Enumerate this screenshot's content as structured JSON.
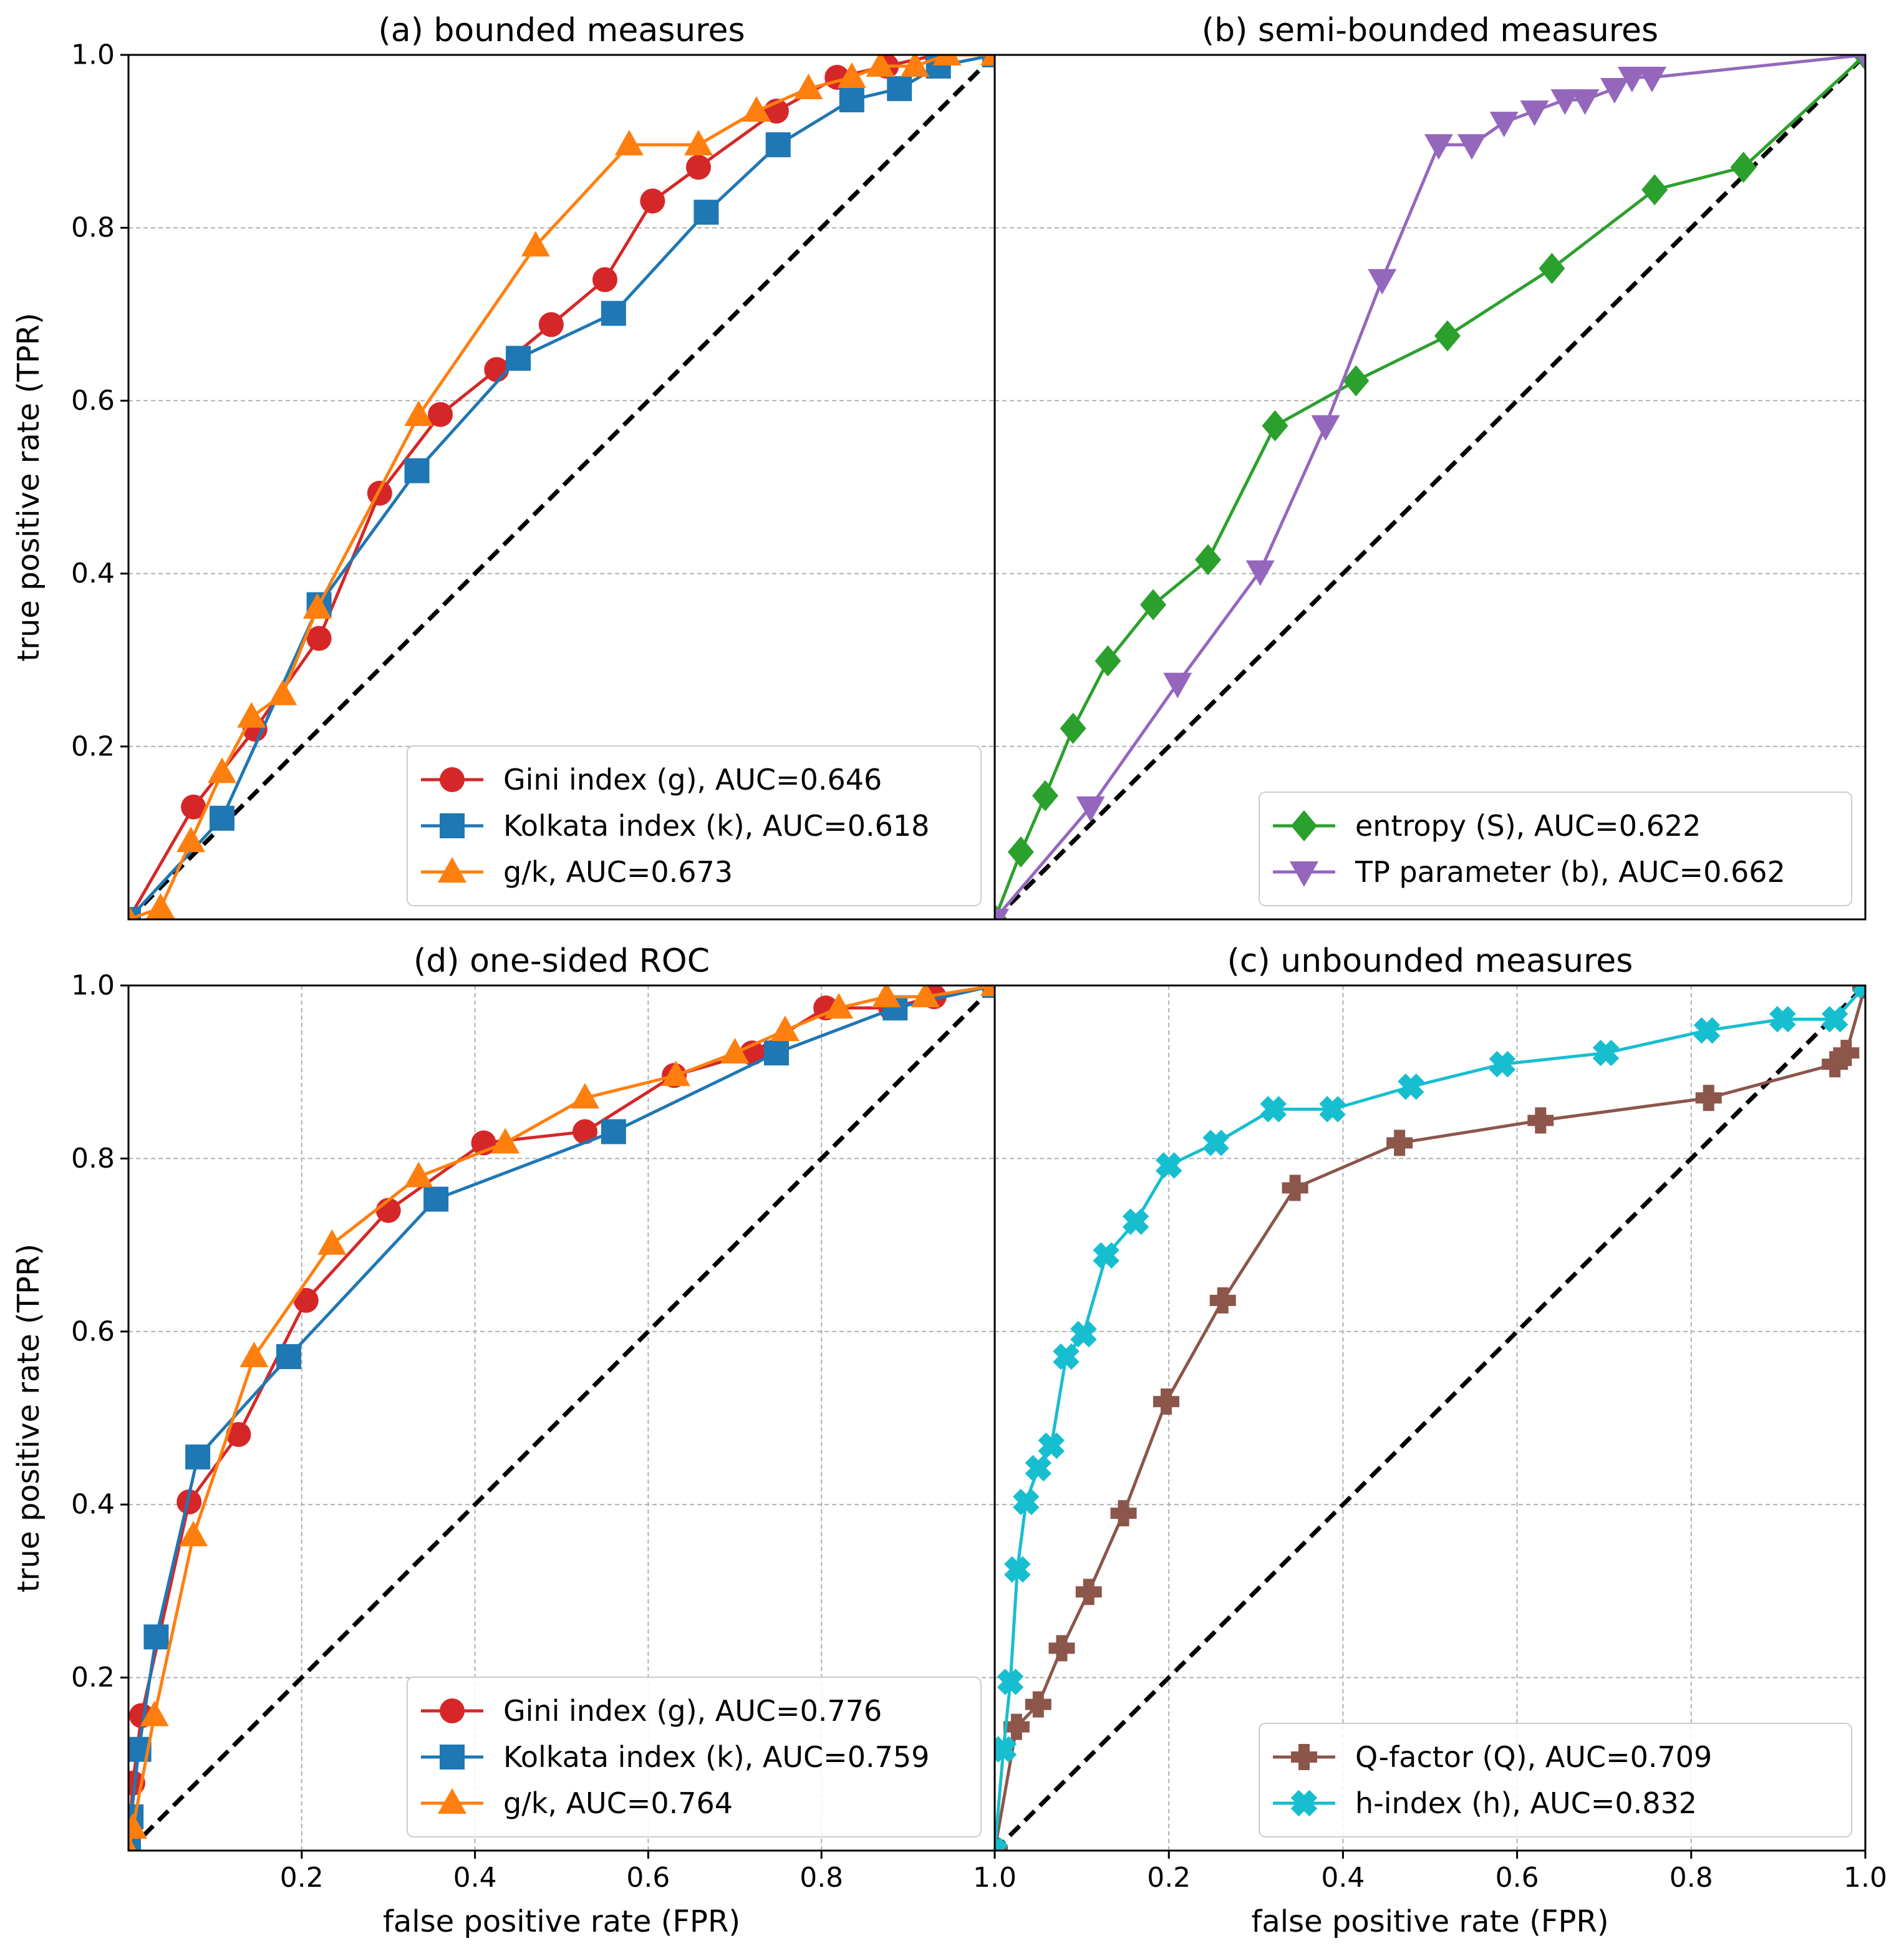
{
  "chart_data": [
    {
      "type": "line",
      "title": "(a) bounded measures",
      "xlabel": "",
      "ylabel": "true positive rate (TPR)",
      "xlim": [
        0,
        1
      ],
      "ylim": [
        0,
        1
      ],
      "x_ticks": [],
      "y_ticks": [
        "0.2",
        "0.4",
        "0.6",
        "0.8",
        "1.0"
      ],
      "grid": "horizontal",
      "legend_position": "lower-right",
      "diagonal": true,
      "series": [
        {
          "name": "Gini index (g), AUC=0.646",
          "color": "#d62728",
          "marker": "circle",
          "x": [
            0,
            0.075,
            0.146,
            0.22,
            0.29,
            0.36,
            0.425,
            0.488,
            0.55,
            0.605,
            0.658,
            0.748,
            0.818,
            0.875,
            0.933,
            1.0
          ],
          "y": [
            0,
            0.13,
            0.22,
            0.325,
            0.493,
            0.584,
            0.636,
            0.688,
            0.74,
            0.831,
            0.87,
            0.935,
            0.974,
            0.987,
            1.0,
            1.0
          ]
        },
        {
          "name": "Kolkata index (k), AUC=0.618",
          "color": "#1f77b4",
          "marker": "square",
          "x": [
            0,
            0.108,
            0.22,
            0.333,
            0.45,
            0.56,
            0.667,
            0.75,
            0.835,
            0.89,
            0.935,
            1.0
          ],
          "y": [
            0,
            0.117,
            0.364,
            0.519,
            0.649,
            0.701,
            0.818,
            0.896,
            0.948,
            0.961,
            0.987,
            1.0
          ]
        },
        {
          "name": "g/k, AUC=0.673",
          "color": "#ff7f0e",
          "marker": "triangle-up",
          "x": [
            0,
            0.037,
            0.072,
            0.108,
            0.142,
            0.178,
            0.218,
            0.335,
            0.47,
            0.578,
            0.658,
            0.725,
            0.785,
            0.835,
            0.868,
            0.908,
            0.945,
            1.0
          ],
          "y": [
            0,
            0.013,
            0.09,
            0.17,
            0.234,
            0.26,
            0.36,
            0.583,
            0.779,
            0.896,
            0.896,
            0.935,
            0.961,
            0.974,
            0.987,
            0.987,
            1.0,
            1.0
          ]
        }
      ]
    },
    {
      "type": "line",
      "title": "(b) semi-bounded measures",
      "xlabel": "",
      "ylabel": "",
      "xlim": [
        0,
        1
      ],
      "ylim": [
        0,
        1
      ],
      "x_ticks": [],
      "y_ticks": [],
      "grid": "horizontal",
      "legend_position": "lower-right",
      "diagonal": true,
      "series": [
        {
          "name": "entropy (S), AUC=0.622",
          "color": "#2ca02c",
          "marker": "diamond",
          "x": [
            0,
            0.03,
            0.058,
            0.09,
            0.13,
            0.182,
            0.245,
            0.322,
            0.415,
            0.52,
            0.64,
            0.758,
            0.86,
            1.0
          ],
          "y": [
            0,
            0.078,
            0.143,
            0.221,
            0.299,
            0.364,
            0.416,
            0.571,
            0.623,
            0.675,
            0.753,
            0.844,
            0.87,
            1.0
          ]
        },
        {
          "name": "TP parameter (b), AUC=0.662",
          "color": "#9467bd",
          "marker": "triangle-down",
          "x": [
            0,
            0.11,
            0.21,
            0.305,
            0.38,
            0.445,
            0.51,
            0.548,
            0.585,
            0.62,
            0.655,
            0.678,
            0.712,
            0.732,
            0.755,
            1.0
          ],
          "y": [
            0,
            0.13,
            0.273,
            0.403,
            0.571,
            0.74,
            0.896,
            0.896,
            0.922,
            0.935,
            0.948,
            0.948,
            0.961,
            0.974,
            0.974,
            1.0
          ]
        }
      ]
    },
    {
      "type": "line",
      "title": "(d) one-sided ROC",
      "xlabel": "false positive rate (FPR)",
      "ylabel": "true positive rate (TPR)",
      "xlim": [
        0,
        1
      ],
      "ylim": [
        0,
        1
      ],
      "x_ticks": [
        "0.2",
        "0.4",
        "0.6",
        "0.8",
        "1.0"
      ],
      "y_ticks": [
        "0.2",
        "0.4",
        "0.6",
        "0.8",
        "1.0"
      ],
      "grid": "both",
      "legend_position": "lower-right",
      "diagonal": true,
      "series": [
        {
          "name": "Gini index (g), AUC=0.776",
          "color": "#d62728",
          "marker": "circle",
          "x": [
            0,
            0.005,
            0.015,
            0.07,
            0.127,
            0.205,
            0.3,
            0.41,
            0.527,
            0.63,
            0.72,
            0.805,
            0.88,
            0.93,
            1.0
          ],
          "y": [
            0,
            0.078,
            0.156,
            0.403,
            0.481,
            0.636,
            0.74,
            0.818,
            0.831,
            0.896,
            0.922,
            0.974,
            0.974,
            0.987,
            1.0
          ]
        },
        {
          "name": "Kolkata index (k), AUC=0.759",
          "color": "#1f77b4",
          "marker": "square",
          "x": [
            0,
            0.003,
            0.012,
            0.032,
            0.08,
            0.185,
            0.355,
            0.56,
            0.748,
            0.885,
            1.0
          ],
          "y": [
            0,
            0.039,
            0.117,
            0.247,
            0.455,
            0.571,
            0.753,
            0.831,
            0.922,
            0.974,
            1.0
          ]
        },
        {
          "name": "g/k, AUC=0.764",
          "color": "#ff7f0e",
          "marker": "triangle-up",
          "x": [
            0,
            0.005,
            0.03,
            0.075,
            0.145,
            0.235,
            0.335,
            0.435,
            0.527,
            0.632,
            0.7,
            0.758,
            0.82,
            0.875,
            0.92,
            1.0
          ],
          "y": [
            0,
            0.026,
            0.156,
            0.364,
            0.571,
            0.701,
            0.779,
            0.818,
            0.87,
            0.896,
            0.922,
            0.948,
            0.974,
            0.987,
            0.987,
            1.0
          ]
        }
      ]
    },
    {
      "type": "line",
      "title": "(c) unbounded measures",
      "xlabel": "false positive rate (FPR)",
      "ylabel": "",
      "xlim": [
        0,
        1
      ],
      "ylim": [
        0,
        1
      ],
      "x_ticks": [
        "0.2",
        "0.4",
        "0.6",
        "0.8",
        "1.0"
      ],
      "y_ticks": [],
      "grid": "both",
      "legend_position": "lower-right",
      "diagonal": true,
      "series": [
        {
          "name": "Q-factor (Q), AUC=0.709",
          "color": "#8c564b",
          "marker": "plus",
          "x": [
            0,
            0.025,
            0.05,
            0.077,
            0.108,
            0.148,
            0.197,
            0.262,
            0.345,
            0.465,
            0.627,
            0.82,
            0.965,
            0.978,
            1.0
          ],
          "y": [
            0,
            0.143,
            0.169,
            0.234,
            0.299,
            0.39,
            0.519,
            0.636,
            0.766,
            0.818,
            0.844,
            0.87,
            0.909,
            0.922,
            1.0
          ]
        },
        {
          "name": "h-index (h), AUC=0.832",
          "color": "#17becf",
          "marker": "x",
          "x": [
            0,
            0.01,
            0.018,
            0.026,
            0.036,
            0.05,
            0.065,
            0.082,
            0.102,
            0.128,
            0.162,
            0.2,
            0.254,
            0.32,
            0.388,
            0.478,
            0.583,
            0.702,
            0.818,
            0.905,
            0.965,
            1.0
          ],
          "y": [
            0,
            0.117,
            0.195,
            0.325,
            0.403,
            0.442,
            0.468,
            0.571,
            0.597,
            0.688,
            0.727,
            0.792,
            0.818,
            0.857,
            0.857,
            0.883,
            0.909,
            0.922,
            0.948,
            0.961,
            0.961,
            1.0
          ]
        }
      ]
    }
  ]
}
